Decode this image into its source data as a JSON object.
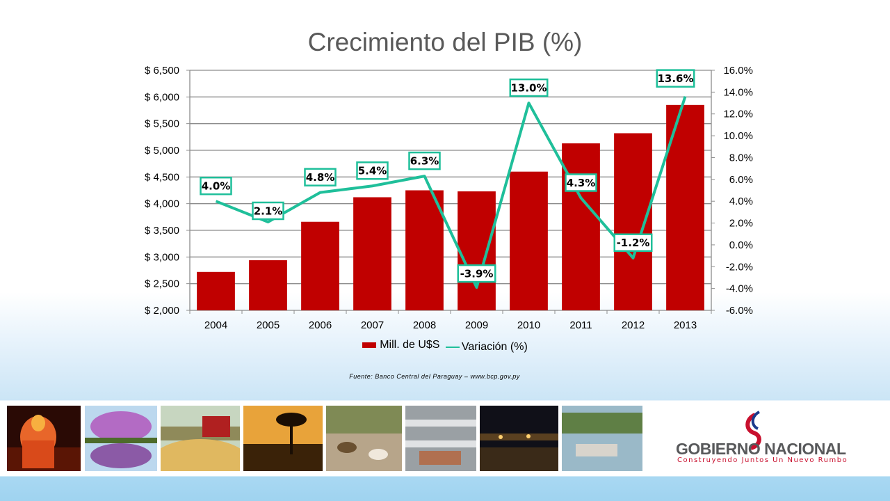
{
  "slide": {
    "source": "Fuente: Banco Central del Paraguay – www.bcp.gov.py",
    "logo_name": "GOBIERNO NACIONAL",
    "logo_tagline": "Construyendo Juntos Un Nuevo Rumbo"
  },
  "photos": [
    "palace-at-night",
    "purple-tree-reflection",
    "soybean-harvest",
    "palm-tree-sunset",
    "cattle-herd",
    "factory-floor",
    "port-at-night",
    "river-barge"
  ],
  "chart_data": {
    "type": "bar",
    "title": "Crecimiento del PIB (%)",
    "categories": [
      "2004",
      "2005",
      "2006",
      "2007",
      "2008",
      "2009",
      "2010",
      "2011",
      "2012",
      "2013"
    ],
    "series": [
      {
        "name": "Mill. de U$S",
        "type": "bar",
        "axis": "left",
        "color": "#c00000",
        "values": [
          2720,
          2940,
          3660,
          4120,
          4250,
          4230,
          4600,
          5130,
          5320,
          5850
        ]
      },
      {
        "name": "Variación (%)",
        "type": "line",
        "axis": "right",
        "color": "#1fbf9a",
        "values": [
          4.0,
          2.1,
          4.8,
          5.4,
          6.3,
          -3.9,
          13.0,
          4.3,
          -1.2,
          13.6
        ],
        "labels": [
          "4.0%",
          "2.1%",
          "4.8%",
          "5.4%",
          "6.3%",
          "-3.9%",
          "13.0%",
          "4.3%",
          "-1.2%",
          "13.6%"
        ]
      }
    ],
    "y_left": {
      "range": [
        2000,
        6500
      ],
      "ticks": [
        2000,
        2500,
        3000,
        3500,
        4000,
        4500,
        5000,
        5500,
        6000,
        6500
      ],
      "tick_labels": [
        "$ 2,000",
        "$ 2,500",
        "$ 3,000",
        "$ 3,500",
        "$ 4,000",
        "$ 4,500",
        "$ 5,000",
        "$ 5,500",
        "$ 6,000",
        "$ 6,500"
      ]
    },
    "y_right": {
      "range": [
        -6,
        16
      ],
      "ticks": [
        -6,
        -4,
        -2,
        0,
        2,
        4,
        6,
        8,
        10,
        12,
        14,
        16
      ],
      "tick_labels": [
        "-6.0%",
        "-4.0%",
        "-2.0%",
        "0.0%",
        "2.0%",
        "4.0%",
        "6.0%",
        "8.0%",
        "10.0%",
        "12.0%",
        "14.0%",
        "16.0%"
      ]
    },
    "grid": true,
    "legend_position": "bottom"
  }
}
